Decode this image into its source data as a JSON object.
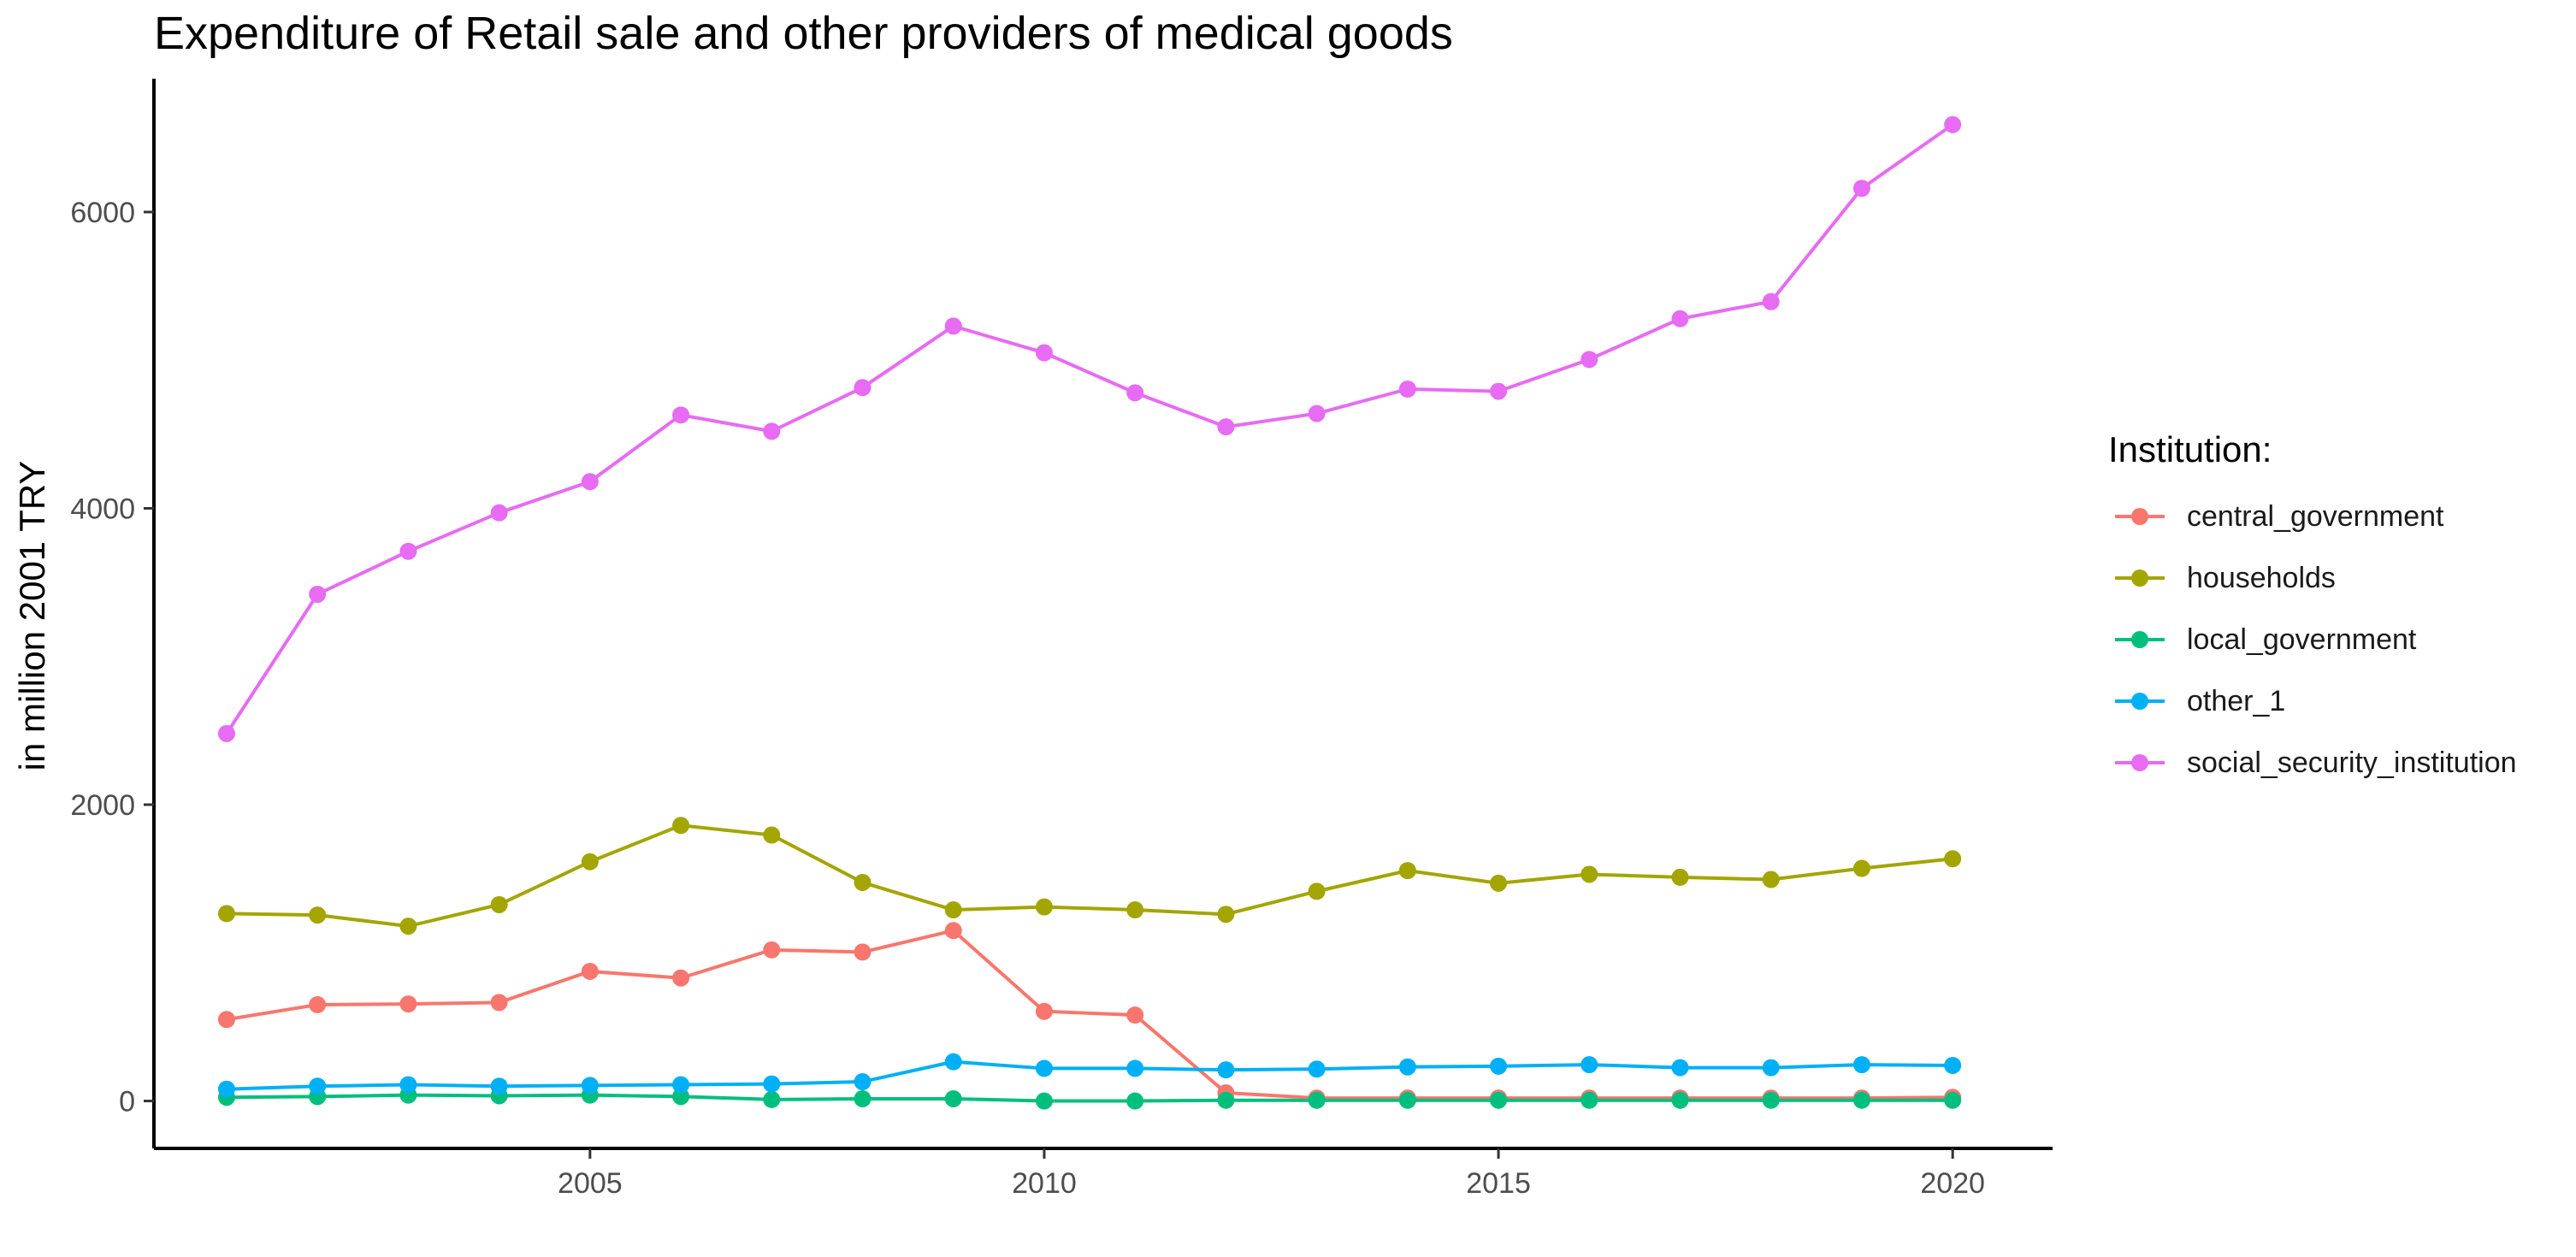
{
  "chart_data": {
    "type": "line",
    "title": "Expenditure of Retail sale and other providers of medical goods",
    "xlabel": "",
    "ylabel": "in million 2001 TRY",
    "x": [
      2001,
      2002,
      2003,
      2004,
      2005,
      2006,
      2007,
      2008,
      2009,
      2010,
      2011,
      2012,
      2013,
      2014,
      2015,
      2016,
      2017,
      2018,
      2019,
      2020
    ],
    "xlim": [
      2000.2,
      2021.1
    ],
    "ylim": [
      -320,
      6900
    ],
    "xticks": [
      2005,
      2010,
      2015,
      2020
    ],
    "yticks": [
      0,
      2000,
      4000,
      6000
    ],
    "grid": false,
    "legend_position": "right",
    "legend_title": "Institution:",
    "series": [
      {
        "name": "central_government",
        "color": "#F8766D",
        "values": [
          550,
          650,
          655,
          665,
          875,
          830,
          1020,
          1005,
          1150,
          605,
          580,
          55,
          20,
          20,
          20,
          20,
          20,
          20,
          20,
          25
        ]
      },
      {
        "name": "households",
        "color": "#A3A500",
        "values": [
          1265,
          1255,
          1180,
          1325,
          1615,
          1860,
          1795,
          1475,
          1290,
          1310,
          1290,
          1260,
          1415,
          1555,
          1470,
          1530,
          1510,
          1495,
          1570,
          1635
        ]
      },
      {
        "name": "local_government",
        "color": "#00BF7D",
        "values": [
          25,
          30,
          40,
          35,
          40,
          30,
          10,
          15,
          15,
          0,
          0,
          5,
          5,
          5,
          5,
          5,
          5,
          5,
          5,
          5
        ]
      },
      {
        "name": "other_1",
        "color": "#00B0F6",
        "values": [
          80,
          100,
          110,
          100,
          105,
          110,
          115,
          130,
          265,
          220,
          220,
          210,
          215,
          230,
          235,
          245,
          225,
          225,
          245,
          240
        ]
      },
      {
        "name": "social_security_institution",
        "color": "#E76BF3",
        "values": [
          2480,
          3420,
          3710,
          3970,
          4180,
          4630,
          4520,
          4815,
          5230,
          5050,
          4780,
          4550,
          4640,
          4805,
          4790,
          5005,
          5280,
          5395,
          6160,
          6590
        ]
      }
    ]
  }
}
